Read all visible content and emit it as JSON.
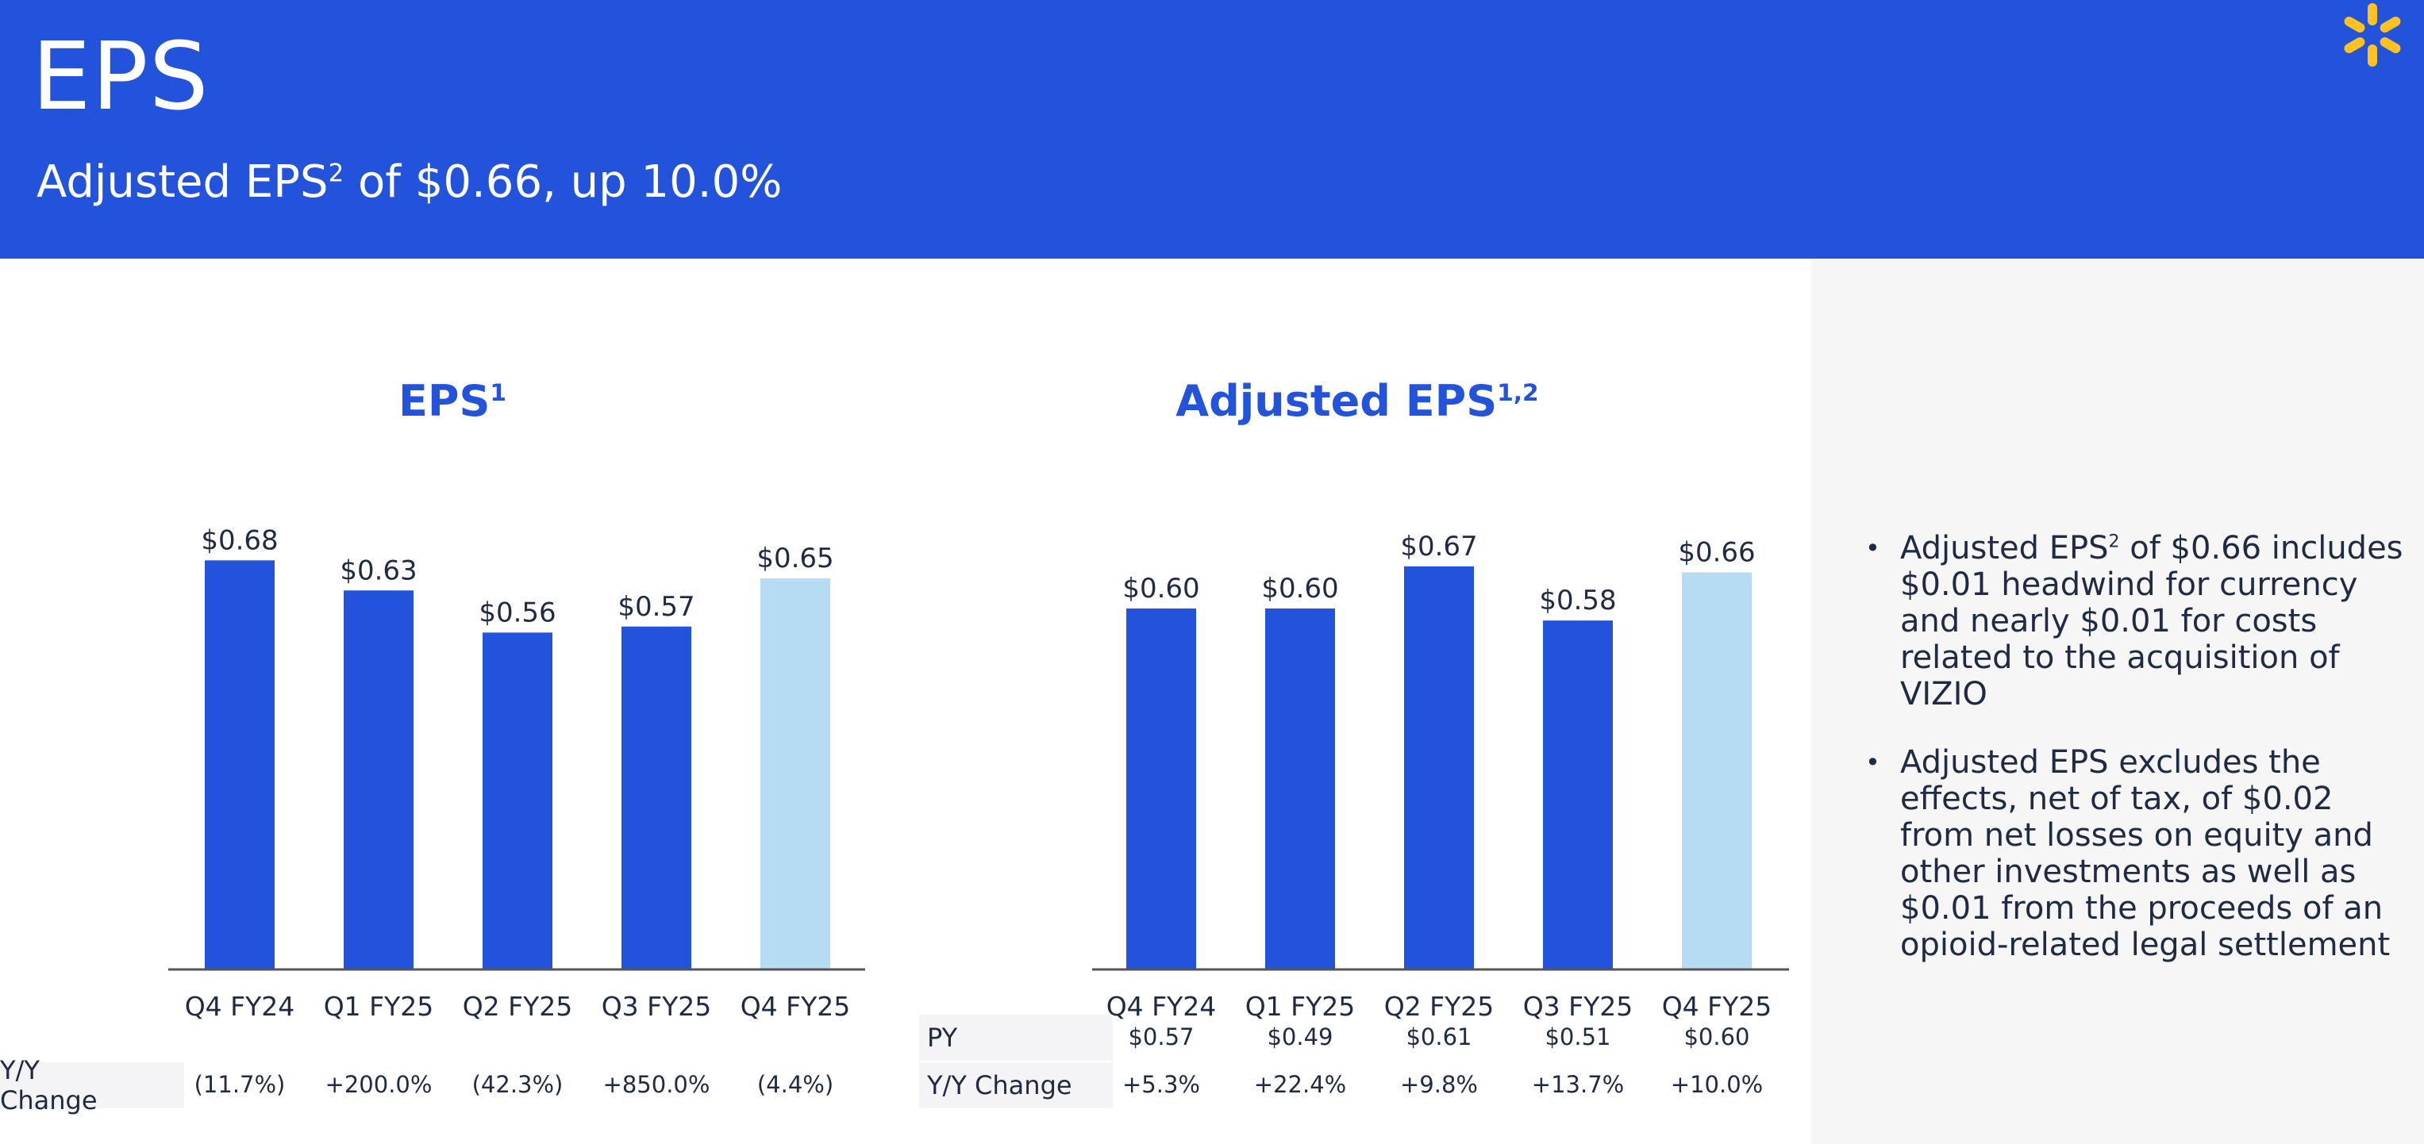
{
  "header": {
    "title": "EPS",
    "subtitle_prefix": "Adjusted EPS",
    "subtitle_sup": "2",
    "subtitle_suffix": " of $0.66, up 10.0%"
  },
  "logo": {
    "icon": "spark-logo-icon",
    "color": "#ffc220"
  },
  "colors": {
    "header_bg": "#2253da",
    "bar_dark": "#2253da",
    "bar_light": "#b5dcf2",
    "axis": "#555555",
    "text": "#1f2a44"
  },
  "chart_data": [
    {
      "type": "bar",
      "title": "EPS",
      "title_sup": "1",
      "categories": [
        "Q4 FY24",
        "Q1 FY25",
        "Q2 FY25",
        "Q3 FY25",
        "Q4 FY25"
      ],
      "values": [
        0.68,
        0.63,
        0.56,
        0.57,
        0.65
      ],
      "value_labels": [
        "$0.68",
        "$0.63",
        "$0.56",
        "$0.57",
        "$0.65"
      ],
      "highlight_index": 4,
      "ylim": [
        0,
        0.72
      ],
      "table": [
        {
          "label": "Y/Y Change",
          "values": [
            "(11.7%)",
            "+200.0%",
            "(42.3%)",
            "+850.0%",
            "(4.4%)"
          ]
        }
      ]
    },
    {
      "type": "bar",
      "title": "Adjusted EPS",
      "title_sup": "1,2",
      "categories": [
        "Q4 FY24",
        "Q1 FY25",
        "Q2 FY25",
        "Q3 FY25",
        "Q4 FY25"
      ],
      "values": [
        0.6,
        0.6,
        0.67,
        0.58,
        0.66
      ],
      "value_labels": [
        "$0.60",
        "$0.60",
        "$0.67",
        "$0.58",
        "$0.66"
      ],
      "highlight_index": 4,
      "ylim": [
        0,
        0.72
      ],
      "table": [
        {
          "label": "PY",
          "values": [
            "$0.57",
            "$0.49",
            "$0.61",
            "$0.51",
            "$0.60"
          ]
        },
        {
          "label": "Y/Y Change",
          "values": [
            "+5.3%",
            "+22.4%",
            "+9.8%",
            "+13.7%",
            "+10.0%"
          ]
        }
      ]
    }
  ],
  "bullets": [
    {
      "prefix": "Adjusted EPS",
      "sup": "2",
      "text": " of $0.66 includes $0.01 headwind for currency and nearly $0.01 for costs related to the acquisition of VIZIO"
    },
    {
      "prefix": "",
      "sup": "",
      "text": "Adjusted EPS excludes the effects, net of tax, of $0.02 from net losses on equity and other investments as well as $0.01 from the proceeds of an opioid-related legal settlement"
    }
  ]
}
